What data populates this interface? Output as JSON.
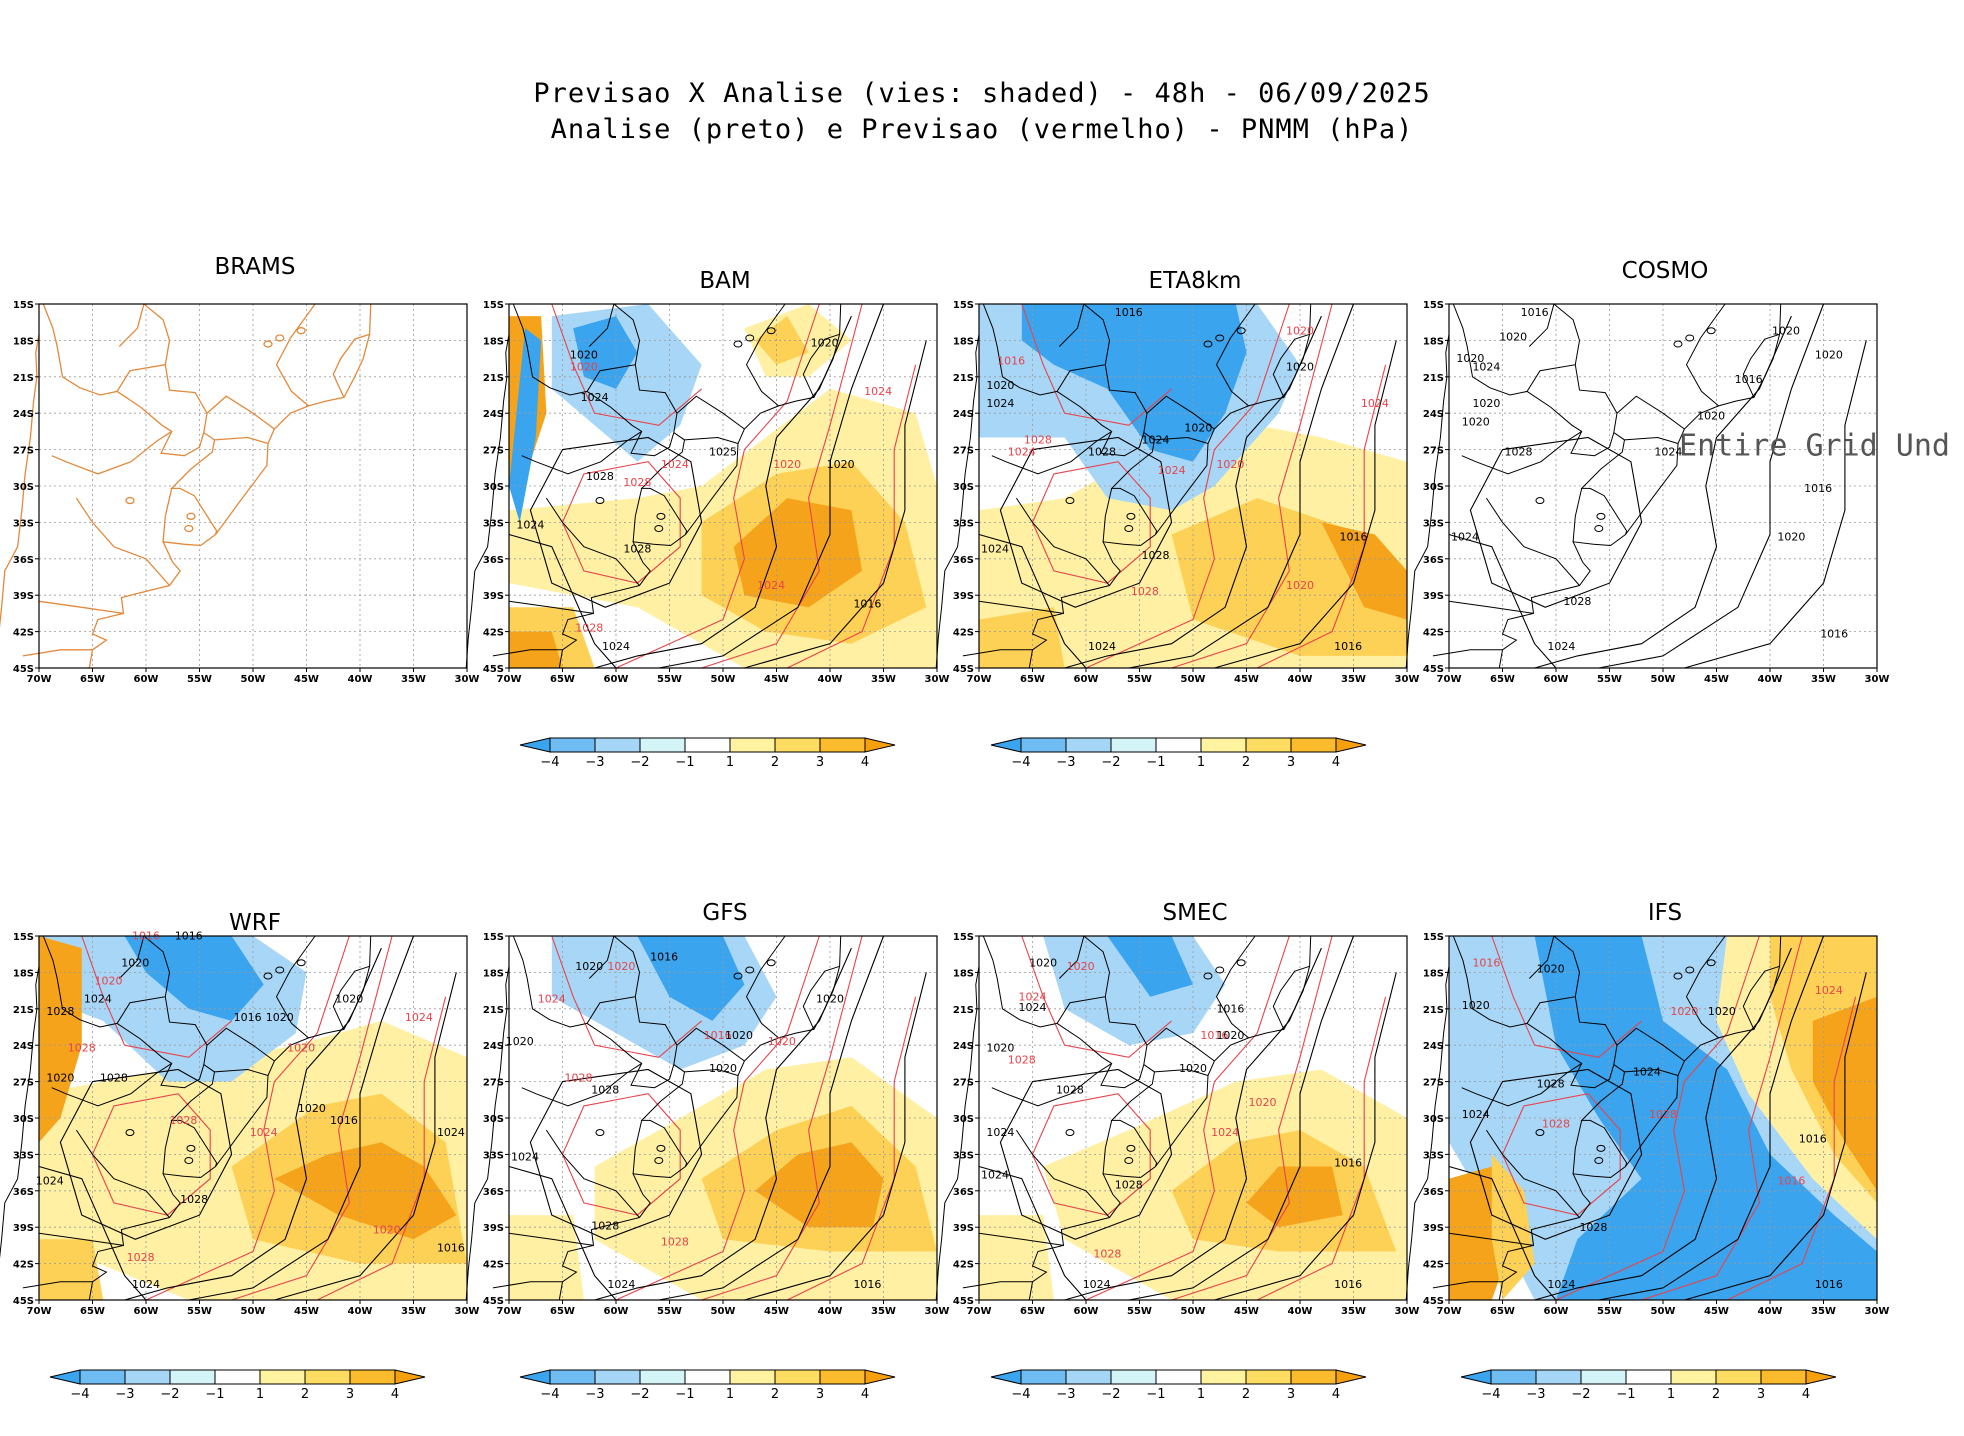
{
  "figure": {
    "title_line1": "Previsao X Analise (vies: shaded) - 48h - 06/09/2025",
    "title_line2": "Analise (preto) e Previsao (vermelho) - PNMM (hPa)"
  },
  "axes": {
    "lat_ticks": [
      "15S",
      "18S",
      "21S",
      "24S",
      "27S",
      "30S",
      "33S",
      "36S",
      "39S",
      "42S",
      "45S"
    ],
    "lon_ticks": [
      "70W",
      "65W",
      "60W",
      "55W",
      "50W",
      "45W",
      "40W",
      "35W",
      "30W"
    ]
  },
  "colorbar": {
    "labels": [
      "-4",
      "-3",
      "-2",
      "-1",
      "1",
      "2",
      "3",
      "4"
    ],
    "colors": [
      "#3ba4ee",
      "#6fbcf2",
      "#a6d6f6",
      "#d3f5f7",
      "#ffffff",
      "#fff3a0",
      "#fddc62",
      "#fcbb2c",
      "#f7a00e"
    ]
  },
  "colors": {
    "analysis": "#000000",
    "forecast": "#e8434b",
    "coast_brams": "#e28a3c",
    "warm_strong": "#f6a31c",
    "warm_mid": "#fdd155",
    "warm_light": "#fff0a3",
    "cold_strong": "#3ba4ee",
    "cold_light": "#a8d6f6"
  },
  "panels": [
    {
      "id": "brams",
      "title": "BRAMS",
      "colorbar": false,
      "labels": []
    },
    {
      "id": "bam",
      "title": "BAM",
      "colorbar": true,
      "labels": [
        {
          "text": "1020",
          "lon": -63,
          "lat": -19.5,
          "color": "analysis"
        },
        {
          "text": "1024",
          "lon": -62,
          "lat": -23,
          "color": "analysis"
        },
        {
          "text": "1028",
          "lon": -61.5,
          "lat": -29.5,
          "color": "analysis"
        },
        {
          "text": "1024",
          "lon": -68,
          "lat": -33.5,
          "color": "analysis"
        },
        {
          "text": "1028",
          "lon": -58,
          "lat": -35.5,
          "color": "analysis"
        },
        {
          "text": "1024",
          "lon": -60,
          "lat": -43.5,
          "color": "analysis"
        },
        {
          "text": "1025",
          "lon": -50,
          "lat": -27.5,
          "color": "analysis"
        },
        {
          "text": "1020",
          "lon": -39,
          "lat": -28.5,
          "color": "analysis"
        },
        {
          "text": "1016",
          "lon": -36.5,
          "lat": -40,
          "color": "analysis"
        },
        {
          "text": "1020",
          "lon": -40.5,
          "lat": -18.5,
          "color": "analysis"
        },
        {
          "text": "1024",
          "lon": -35.5,
          "lat": -22.5,
          "color": "forecast"
        },
        {
          "text": "1020",
          "lon": -44,
          "lat": -28.5,
          "color": "forecast"
        },
        {
          "text": "1024",
          "lon": -45.5,
          "lat": -38.5,
          "color": "forecast"
        },
        {
          "text": "1028",
          "lon": -58,
          "lat": -30,
          "color": "forecast"
        },
        {
          "text": "1024",
          "lon": -54.5,
          "lat": -28.5,
          "color": "forecast"
        },
        {
          "text": "1028",
          "lon": -62.5,
          "lat": -42,
          "color": "forecast"
        },
        {
          "text": "1020",
          "lon": -63,
          "lat": -20.5,
          "color": "forecast"
        }
      ]
    },
    {
      "id": "eta8km",
      "title": "ETA8km",
      "colorbar": true,
      "labels": [
        {
          "text": "1016",
          "lon": -56,
          "lat": -16,
          "color": "analysis"
        },
        {
          "text": "1020",
          "lon": -68,
          "lat": -22,
          "color": "analysis"
        },
        {
          "text": "1024",
          "lon": -68,
          "lat": -23.5,
          "color": "analysis"
        },
        {
          "text": "1028",
          "lon": -58.5,
          "lat": -27.5,
          "color": "analysis"
        },
        {
          "text": "1024",
          "lon": -53.5,
          "lat": -26.5,
          "color": "analysis"
        },
        {
          "text": "1020",
          "lon": -49.5,
          "lat": -25.5,
          "color": "analysis"
        },
        {
          "text": "1020",
          "lon": -40,
          "lat": -20.5,
          "color": "analysis"
        },
        {
          "text": "1024",
          "lon": -68.5,
          "lat": -35.5,
          "color": "analysis"
        },
        {
          "text": "1028",
          "lon": -53.5,
          "lat": -36,
          "color": "analysis"
        },
        {
          "text": "1024",
          "lon": -58.5,
          "lat": -43.5,
          "color": "analysis"
        },
        {
          "text": "1016",
          "lon": -35,
          "lat": -34.5,
          "color": "analysis"
        },
        {
          "text": "1016",
          "lon": -35.5,
          "lat": -43.5,
          "color": "analysis"
        },
        {
          "text": "1016",
          "lon": -67,
          "lat": -20,
          "color": "forecast"
        },
        {
          "text": "1020",
          "lon": -40,
          "lat": -17.5,
          "color": "forecast"
        },
        {
          "text": "1024",
          "lon": -33,
          "lat": -23.5,
          "color": "forecast"
        },
        {
          "text": "1028",
          "lon": -64.5,
          "lat": -26.5,
          "color": "forecast"
        },
        {
          "text": "1024",
          "lon": -66,
          "lat": -27.5,
          "color": "forecast"
        },
        {
          "text": "1024",
          "lon": -52,
          "lat": -29,
          "color": "forecast"
        },
        {
          "text": "1020",
          "lon": -46.5,
          "lat": -28.5,
          "color": "forecast"
        },
        {
          "text": "1028",
          "lon": -54.5,
          "lat": -39,
          "color": "forecast"
        },
        {
          "text": "1020",
          "lon": -40,
          "lat": -38.5,
          "color": "forecast"
        }
      ]
    },
    {
      "id": "cosmo",
      "title": "COSMO",
      "colorbar": false,
      "overlay": "Entire Grid Und",
      "labels": [
        {
          "text": "1016",
          "lon": -62,
          "lat": -16,
          "color": "analysis"
        },
        {
          "text": "1020",
          "lon": -64,
          "lat": -18,
          "color": "analysis"
        },
        {
          "text": "1020",
          "lon": -68,
          "lat": -19.8,
          "color": "analysis"
        },
        {
          "text": "1024",
          "lon": -66.5,
          "lat": -20.5,
          "color": "analysis"
        },
        {
          "text": "1020",
          "lon": -66.5,
          "lat": -23.5,
          "color": "analysis"
        },
        {
          "text": "1020",
          "lon": -67.5,
          "lat": -25,
          "color": "analysis"
        },
        {
          "text": "1028",
          "lon": -63.5,
          "lat": -27.5,
          "color": "analysis"
        },
        {
          "text": "1024",
          "lon": -68.5,
          "lat": -34.5,
          "color": "analysis"
        },
        {
          "text": "1028",
          "lon": -58,
          "lat": -39.8,
          "color": "analysis"
        },
        {
          "text": "1024",
          "lon": -59.5,
          "lat": -43.5,
          "color": "analysis"
        },
        {
          "text": "1020",
          "lon": -38.5,
          "lat": -17.5,
          "color": "analysis"
        },
        {
          "text": "1020",
          "lon": -34.5,
          "lat": -19.5,
          "color": "analysis"
        },
        {
          "text": "1016",
          "lon": -42,
          "lat": -21.5,
          "color": "analysis"
        },
        {
          "text": "1020",
          "lon": -45.5,
          "lat": -24.5,
          "color": "analysis"
        },
        {
          "text": "1024",
          "lon": -49.5,
          "lat": -27.5,
          "color": "analysis"
        },
        {
          "text": "1016",
          "lon": -35.5,
          "lat": -30.5,
          "color": "analysis"
        },
        {
          "text": "1020",
          "lon": -38,
          "lat": -34.5,
          "color": "analysis"
        },
        {
          "text": "1016",
          "lon": -34,
          "lat": -42.5,
          "color": "analysis"
        }
      ]
    },
    {
      "id": "wrf",
      "title": "WRF",
      "colorbar": true,
      "labels": [
        {
          "text": "1016",
          "lon": -60,
          "lat": -15.3,
          "color": "forecast"
        },
        {
          "text": "1016",
          "lon": -56,
          "lat": -15.3,
          "color": "analysis"
        },
        {
          "text": "1020",
          "lon": -61,
          "lat": -17.5,
          "color": "analysis"
        },
        {
          "text": "1020",
          "lon": -63.5,
          "lat": -19,
          "color": "forecast"
        },
        {
          "text": "1024",
          "lon": -64.5,
          "lat": -20.5,
          "color": "analysis"
        },
        {
          "text": "1028",
          "lon": -68,
          "lat": -21.5,
          "color": "analysis"
        },
        {
          "text": "1028",
          "lon": -66,
          "lat": -24.5,
          "color": "forecast"
        },
        {
          "text": "1020",
          "lon": -68,
          "lat": -27,
          "color": "analysis"
        },
        {
          "text": "1028",
          "lon": -63,
          "lat": -27,
          "color": "analysis"
        },
        {
          "text": "1016",
          "lon": -50.5,
          "lat": -22,
          "color": "analysis"
        },
        {
          "text": "1020",
          "lon": -47.5,
          "lat": -22,
          "color": "analysis"
        },
        {
          "text": "1020",
          "lon": -45.5,
          "lat": -24.5,
          "color": "forecast"
        },
        {
          "text": "1020",
          "lon": -41,
          "lat": -20.5,
          "color": "analysis"
        },
        {
          "text": "1024",
          "lon": -34.5,
          "lat": -22,
          "color": "forecast"
        },
        {
          "text": "1028",
          "lon": -56.5,
          "lat": -30.5,
          "color": "forecast"
        },
        {
          "text": "1024",
          "lon": -49,
          "lat": -31.5,
          "color": "forecast"
        },
        {
          "text": "1020",
          "lon": -44.5,
          "lat": -29.5,
          "color": "analysis"
        },
        {
          "text": "1016",
          "lon": -41.5,
          "lat": -30.5,
          "color": "analysis"
        },
        {
          "text": "1024",
          "lon": -31.5,
          "lat": -31.5,
          "color": "analysis"
        },
        {
          "text": "1024",
          "lon": -69,
          "lat": -35.5,
          "color": "analysis"
        },
        {
          "text": "1028",
          "lon": -55.5,
          "lat": -37,
          "color": "analysis"
        },
        {
          "text": "1020",
          "lon": -37.5,
          "lat": -39.5,
          "color": "forecast"
        },
        {
          "text": "1016",
          "lon": -31.5,
          "lat": -41,
          "color": "analysis"
        },
        {
          "text": "1028",
          "lon": -60.5,
          "lat": -41.8,
          "color": "forecast"
        },
        {
          "text": "1024",
          "lon": -60,
          "lat": -44,
          "color": "analysis"
        }
      ]
    },
    {
      "id": "gfs",
      "title": "GFS",
      "colorbar": true,
      "labels": [
        {
          "text": "1020",
          "lon": -62.5,
          "lat": -17.8,
          "color": "analysis"
        },
        {
          "text": "1020",
          "lon": -59.5,
          "lat": -17.8,
          "color": "forecast"
        },
        {
          "text": "1016",
          "lon": -55.5,
          "lat": -17,
          "color": "analysis"
        },
        {
          "text": "1024",
          "lon": -66,
          "lat": -20.5,
          "color": "forecast"
        },
        {
          "text": "1020",
          "lon": -40,
          "lat": -20.5,
          "color": "analysis"
        },
        {
          "text": "1016",
          "lon": -50.5,
          "lat": -23.5,
          "color": "forecast"
        },
        {
          "text": "1020",
          "lon": -48.5,
          "lat": -23.5,
          "color": "analysis"
        },
        {
          "text": "1020",
          "lon": -44.5,
          "lat": -24,
          "color": "forecast"
        },
        {
          "text": "1020",
          "lon": -69,
          "lat": -24,
          "color": "analysis"
        },
        {
          "text": "1028",
          "lon": -63.5,
          "lat": -27,
          "color": "forecast"
        },
        {
          "text": "1028",
          "lon": -61,
          "lat": -28,
          "color": "analysis"
        },
        {
          "text": "1020",
          "lon": -50,
          "lat": -26.2,
          "color": "analysis"
        },
        {
          "text": "1024",
          "lon": -68.5,
          "lat": -33.5,
          "color": "analysis"
        },
        {
          "text": "1028",
          "lon": -61,
          "lat": -39.2,
          "color": "analysis"
        },
        {
          "text": "1028",
          "lon": -54.5,
          "lat": -40.5,
          "color": "forecast"
        },
        {
          "text": "1024",
          "lon": -59.5,
          "lat": -44,
          "color": "analysis"
        },
        {
          "text": "1016",
          "lon": -36.5,
          "lat": -44,
          "color": "analysis"
        }
      ]
    },
    {
      "id": "smec",
      "title": "SMEC",
      "colorbar": true,
      "labels": [
        {
          "text": "1020",
          "lon": -64,
          "lat": -17.5,
          "color": "analysis"
        },
        {
          "text": "1020",
          "lon": -60.5,
          "lat": -17.8,
          "color": "forecast"
        },
        {
          "text": "1024",
          "lon": -65,
          "lat": -20.3,
          "color": "forecast"
        },
        {
          "text": "1024",
          "lon": -65,
          "lat": -21.2,
          "color": "analysis"
        },
        {
          "text": "1016",
          "lon": -46.5,
          "lat": -21.3,
          "color": "analysis"
        },
        {
          "text": "1016",
          "lon": -48,
          "lat": -23.5,
          "color": "forecast"
        },
        {
          "text": "1020",
          "lon": -46.5,
          "lat": -23.5,
          "color": "analysis"
        },
        {
          "text": "1020",
          "lon": -68,
          "lat": -24.5,
          "color": "analysis"
        },
        {
          "text": "1028",
          "lon": -66,
          "lat": -25.5,
          "color": "forecast"
        },
        {
          "text": "1020",
          "lon": -50,
          "lat": -26.2,
          "color": "analysis"
        },
        {
          "text": "1028",
          "lon": -61.5,
          "lat": -28,
          "color": "analysis"
        },
        {
          "text": "1020",
          "lon": -43.5,
          "lat": -29,
          "color": "forecast"
        },
        {
          "text": "1024",
          "lon": -68,
          "lat": -31.5,
          "color": "analysis"
        },
        {
          "text": "1024",
          "lon": -47,
          "lat": -31.5,
          "color": "forecast"
        },
        {
          "text": "1024",
          "lon": -68.5,
          "lat": -35,
          "color": "analysis"
        },
        {
          "text": "1028",
          "lon": -56,
          "lat": -35.8,
          "color": "analysis"
        },
        {
          "text": "1016",
          "lon": -35.5,
          "lat": -34,
          "color": "analysis"
        },
        {
          "text": "1028",
          "lon": -58,
          "lat": -41.5,
          "color": "forecast"
        },
        {
          "text": "1024",
          "lon": -59,
          "lat": -44,
          "color": "analysis"
        },
        {
          "text": "1016",
          "lon": -35.5,
          "lat": -44,
          "color": "analysis"
        }
      ]
    },
    {
      "id": "ifs",
      "title": "IFS",
      "colorbar": true,
      "labels": [
        {
          "text": "1016",
          "lon": -66.5,
          "lat": -17.5,
          "color": "forecast"
        },
        {
          "text": "1020",
          "lon": -60.5,
          "lat": -18,
          "color": "analysis"
        },
        {
          "text": "1020",
          "lon": -67.5,
          "lat": -21,
          "color": "analysis"
        },
        {
          "text": "1028",
          "lon": -60.5,
          "lat": -27.5,
          "color": "analysis"
        },
        {
          "text": "1024",
          "lon": -67.5,
          "lat": -30,
          "color": "analysis"
        },
        {
          "text": "1028",
          "lon": -60,
          "lat": -30.8,
          "color": "forecast"
        },
        {
          "text": "1020",
          "lon": -44.5,
          "lat": -21.5,
          "color": "analysis"
        },
        {
          "text": "1024",
          "lon": -34.5,
          "lat": -19.8,
          "color": "forecast"
        },
        {
          "text": "1020",
          "lon": -48,
          "lat": -21.5,
          "color": "forecast"
        },
        {
          "text": "1024",
          "lon": -51.5,
          "lat": -26.5,
          "color": "analysis"
        },
        {
          "text": "1028",
          "lon": -50,
          "lat": -30,
          "color": "forecast"
        },
        {
          "text": "1016",
          "lon": -38,
          "lat": -35.5,
          "color": "forecast"
        },
        {
          "text": "1016",
          "lon": -36,
          "lat": -32,
          "color": "analysis"
        },
        {
          "text": "1028",
          "lon": -56.5,
          "lat": -39.3,
          "color": "analysis"
        },
        {
          "text": "1024",
          "lon": -59.5,
          "lat": -44,
          "color": "analysis"
        },
        {
          "text": "1016",
          "lon": -34.5,
          "lat": -44,
          "color": "analysis"
        }
      ]
    }
  ]
}
